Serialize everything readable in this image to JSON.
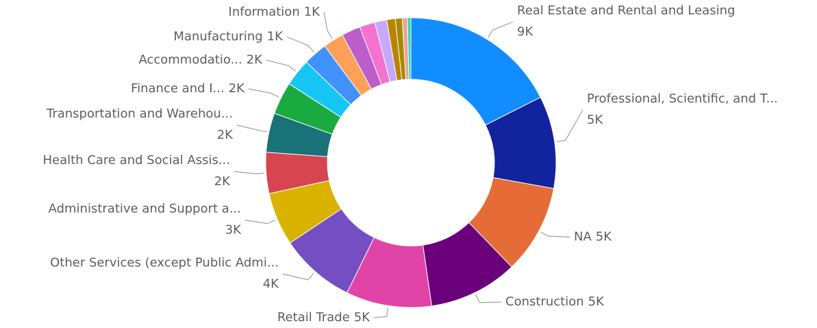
{
  "chart_data": {
    "type": "donut",
    "categories": [
      "Real Estate and Rental and Leasing",
      "Professional, Scientific, and T...",
      "NA",
      "Construction",
      "Retail Trade",
      "Other Services (except Public Admi...",
      "Administrative and Support a...",
      "Health Care and Social Assis...",
      "Transportation and Warehou...",
      "Finance and I...",
      "Accommodatio...",
      "Manufacturing",
      "Information",
      null,
      null,
      null,
      null,
      null,
      null,
      null
    ],
    "values": [
      9200,
      5400,
      5200,
      5200,
      5000,
      4400,
      3100,
      2400,
      2300,
      1900,
      1600,
      1400,
      1200,
      1100,
      900,
      700,
      500,
      400,
      300,
      200
    ],
    "value_labels": [
      "9K",
      "5K",
      "5K",
      "5K",
      "5K",
      "4K",
      "3K",
      "2K",
      "2K",
      "2K",
      "2K",
      "1K",
      "1K",
      null,
      null,
      null,
      null,
      null,
      null,
      null
    ],
    "colors": [
      "#118dff",
      "#12239e",
      "#e66c37",
      "#6b007b",
      "#e044a7",
      "#744ec2",
      "#d9b300",
      "#d64550",
      "#197278",
      "#1aab40",
      "#15c6f4",
      "#4092ff",
      "#ffa058",
      "#be5dc9",
      "#f472d0",
      "#c5a8ff",
      "#b88500",
      "#a68a00",
      "#f0a0a0",
      "#2bd9a0"
    ]
  }
}
